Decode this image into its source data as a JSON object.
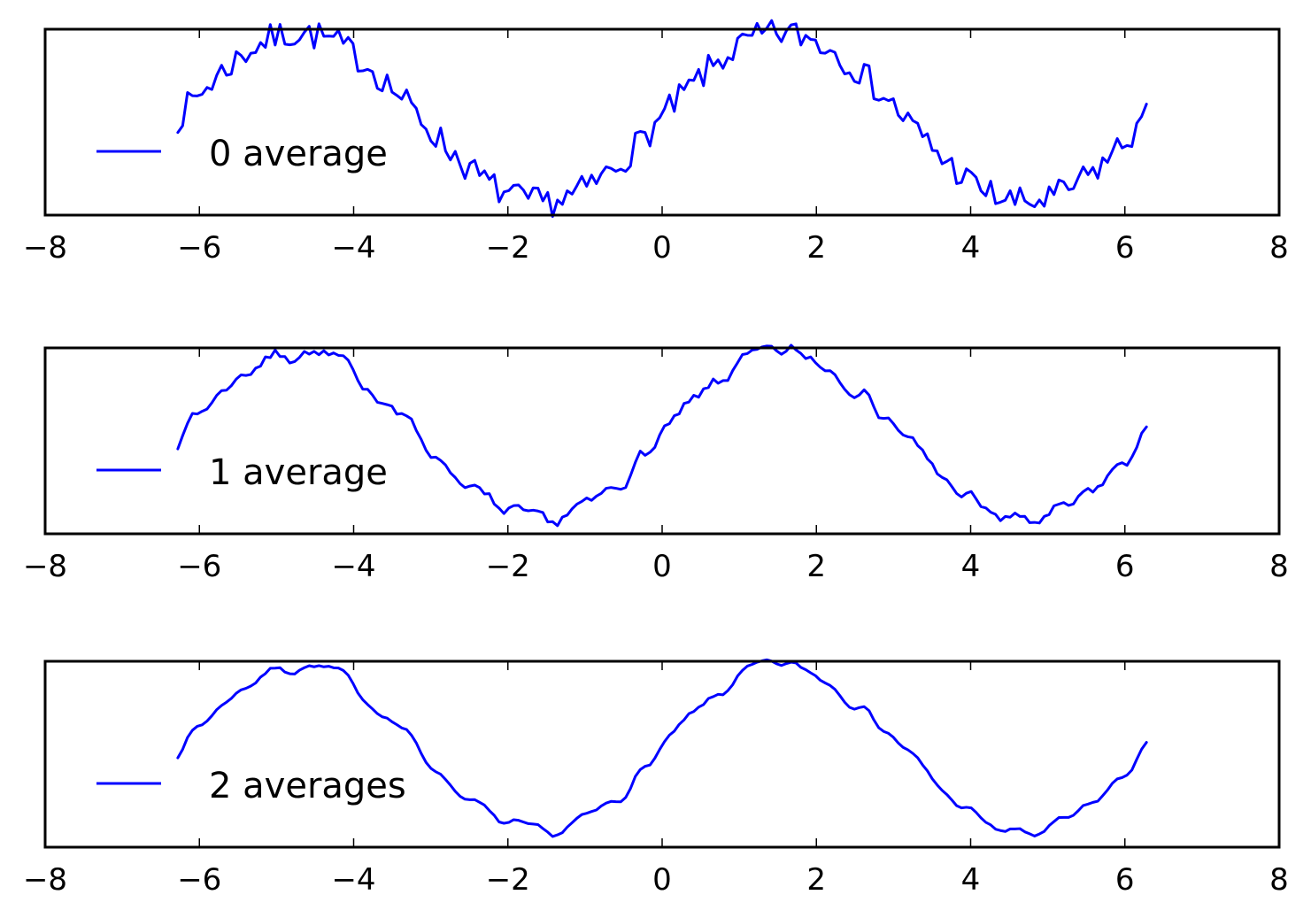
{
  "chart_data": [
    {
      "type": "line",
      "xlim": [
        -8,
        8
      ],
      "ylim": [
        -1.15,
        1.05
      ],
      "x_ticks": [
        -8,
        -6,
        -4,
        -2,
        0,
        2,
        4,
        6,
        8
      ],
      "x_tick_labels": [
        "−8",
        "−6",
        "−4",
        "−2",
        "0",
        "2",
        "4",
        "6",
        "8"
      ],
      "y_ticks": [],
      "legend_position": "left",
      "series": [
        {
          "name": "0 average",
          "label": "0 average",
          "color": "#0000ff",
          "function": "sin",
          "x_start": -6.28,
          "x_end": 6.28,
          "num_points": 200,
          "noise_amplitude": 0.18,
          "averages": 0,
          "seed": 7
        }
      ]
    },
    {
      "type": "line",
      "xlim": [
        -8,
        8
      ],
      "ylim": [
        -1.15,
        1.05
      ],
      "x_ticks": [
        -8,
        -6,
        -4,
        -2,
        0,
        2,
        4,
        6,
        8
      ],
      "x_tick_labels": [
        "−8",
        "−6",
        "−4",
        "−2",
        "0",
        "2",
        "4",
        "6",
        "8"
      ],
      "y_ticks": [],
      "legend_position": "left",
      "series": [
        {
          "name": "1 average",
          "label": "1 average",
          "color": "#0000ff",
          "function": "sin",
          "x_start": -6.28,
          "x_end": 6.28,
          "num_points": 200,
          "noise_amplitude": 0.18,
          "averages": 1,
          "seed": 7
        }
      ]
    },
    {
      "type": "line",
      "xlim": [
        -8,
        8
      ],
      "ylim": [
        -1.15,
        1.05
      ],
      "x_ticks": [
        -8,
        -6,
        -4,
        -2,
        0,
        2,
        4,
        6,
        8
      ],
      "x_tick_labels": [
        "−8",
        "−6",
        "−4",
        "−2",
        "0",
        "2",
        "4",
        "6",
        "8"
      ],
      "y_ticks": [],
      "legend_position": "left",
      "series": [
        {
          "name": "2 averages",
          "label": "2 averages",
          "color": "#0000ff",
          "function": "sin",
          "x_start": -6.28,
          "x_end": 6.28,
          "num_points": 200,
          "noise_amplitude": 0.18,
          "averages": 2,
          "seed": 7
        }
      ]
    }
  ]
}
